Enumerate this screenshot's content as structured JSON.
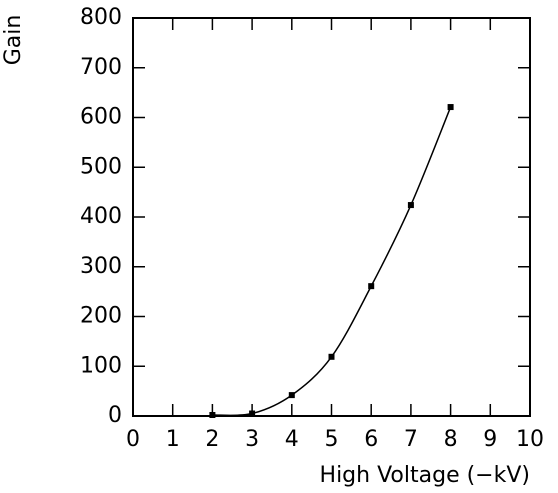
{
  "chart_data": {
    "type": "line",
    "x_label": "High Voltage (−kV)",
    "y_label": "Gain",
    "x": [
      2,
      3,
      4,
      5,
      6,
      7,
      8
    ],
    "series": [
      {
        "color": "#000000",
        "values": [
          2,
          5,
          42,
          119,
          261,
          424,
          621
        ]
      }
    ],
    "xlim": [
      0,
      10
    ],
    "xticks": [
      0,
      1,
      2,
      3,
      4,
      5,
      6,
      7,
      8,
      9,
      10
    ],
    "ylim": [
      0,
      800
    ],
    "yticks": [
      0,
      100,
      200,
      300,
      400,
      500,
      600,
      700,
      800
    ]
  }
}
